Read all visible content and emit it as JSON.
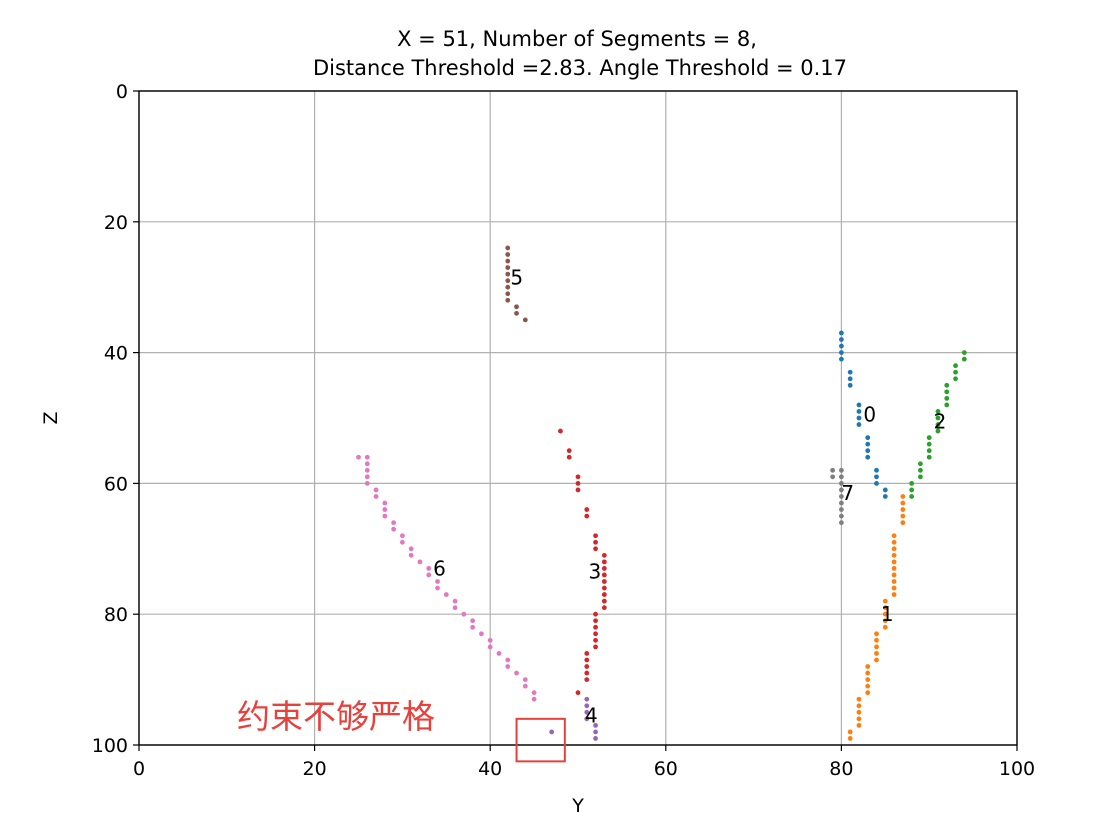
{
  "chart_data": {
    "type": "scatter",
    "title_line1": "X = 51, Number of Segments = 8,",
    "title_line2": "Distance Threshold =2.83. Angle Threshold = 0.17",
    "xlabel": "Y",
    "ylabel": "Z",
    "xlim": [
      0,
      100
    ],
    "ylim": [
      100,
      0
    ],
    "y_axis_inverted": true,
    "grid": true,
    "xticks": [
      0,
      20,
      40,
      60,
      80,
      100
    ],
    "yticks": [
      0,
      20,
      40,
      60,
      80,
      100
    ],
    "xtick_labels": [
      "0",
      "20",
      "40",
      "60",
      "80",
      "100"
    ],
    "ytick_labels": [
      "0",
      "20",
      "40",
      "60",
      "80",
      "100"
    ],
    "series": [
      {
        "label": "0",
        "color": "#1f77b4",
        "label_pos": [
          82.5,
          49.5
        ],
        "points": [
          [
            80,
            37
          ],
          [
            80,
            38
          ],
          [
            80,
            39
          ],
          [
            80,
            40
          ],
          [
            80,
            41
          ],
          [
            81,
            43
          ],
          [
            81,
            44
          ],
          [
            81,
            45
          ],
          [
            82,
            48
          ],
          [
            82,
            49
          ],
          [
            82,
            50
          ],
          [
            82,
            51
          ],
          [
            83,
            53
          ],
          [
            83,
            54
          ],
          [
            83,
            55
          ],
          [
            83,
            56
          ],
          [
            84,
            58
          ],
          [
            84,
            59
          ],
          [
            84,
            60
          ],
          [
            85,
            61
          ],
          [
            85,
            62
          ]
        ]
      },
      {
        "label": "1",
        "color": "#ff7f0e",
        "label_pos": [
          84.5,
          80.0
        ],
        "points": [
          [
            87,
            62
          ],
          [
            87,
            63
          ],
          [
            87,
            64
          ],
          [
            87,
            65
          ],
          [
            87,
            66
          ],
          [
            86,
            68
          ],
          [
            86,
            69
          ],
          [
            86,
            70
          ],
          [
            86,
            71
          ],
          [
            86,
            72
          ],
          [
            86,
            73
          ],
          [
            86,
            74
          ],
          [
            86,
            75
          ],
          [
            86,
            76
          ],
          [
            86,
            77
          ],
          [
            85,
            78
          ],
          [
            85,
            79
          ],
          [
            85,
            80
          ],
          [
            85,
            81
          ],
          [
            85,
            82
          ],
          [
            84,
            83
          ],
          [
            84,
            84
          ],
          [
            84,
            85
          ],
          [
            84,
            86
          ],
          [
            84,
            87
          ],
          [
            83,
            88
          ],
          [
            83,
            89
          ],
          [
            83,
            90
          ],
          [
            83,
            91
          ],
          [
            83,
            92
          ],
          [
            82,
            93
          ],
          [
            82,
            94
          ],
          [
            82,
            95
          ],
          [
            82,
            96
          ],
          [
            82,
            97
          ],
          [
            81,
            98
          ],
          [
            81,
            99
          ]
        ]
      },
      {
        "label": "2",
        "color": "#2ca02c",
        "label_pos": [
          90.5,
          50.5
        ],
        "points": [
          [
            94,
            40
          ],
          [
            94,
            41
          ],
          [
            93,
            42
          ],
          [
            93,
            43
          ],
          [
            93,
            44
          ],
          [
            92,
            45
          ],
          [
            92,
            46
          ],
          [
            92,
            47
          ],
          [
            92,
            48
          ],
          [
            91,
            49
          ],
          [
            91,
            50
          ],
          [
            91,
            51
          ],
          [
            91,
            52
          ],
          [
            90,
            53
          ],
          [
            90,
            54
          ],
          [
            90,
            55
          ],
          [
            90,
            56
          ],
          [
            89,
            57
          ],
          [
            89,
            58
          ],
          [
            89,
            59
          ],
          [
            88,
            60
          ],
          [
            88,
            61
          ],
          [
            88,
            62
          ]
        ]
      },
      {
        "label": "3",
        "color": "#d62728",
        "label_pos": [
          51.2,
          73.5
        ],
        "points": [
          [
            48,
            52
          ],
          [
            49,
            55
          ],
          [
            49,
            56
          ],
          [
            50,
            59
          ],
          [
            50,
            60
          ],
          [
            50,
            61
          ],
          [
            51,
            64
          ],
          [
            51,
            65
          ],
          [
            52,
            68
          ],
          [
            52,
            69
          ],
          [
            52,
            70
          ],
          [
            53,
            71
          ],
          [
            53,
            72
          ],
          [
            53,
            73
          ],
          [
            53,
            74
          ],
          [
            53,
            75
          ],
          [
            53,
            76
          ],
          [
            53,
            77
          ],
          [
            53,
            78
          ],
          [
            53,
            79
          ],
          [
            52,
            80
          ],
          [
            52,
            81
          ],
          [
            52,
            82
          ],
          [
            52,
            83
          ],
          [
            52,
            84
          ],
          [
            52,
            85
          ],
          [
            51,
            86
          ],
          [
            51,
            87
          ],
          [
            51,
            88
          ],
          [
            51,
            89
          ],
          [
            51,
            90
          ],
          [
            50,
            92
          ]
        ]
      },
      {
        "label": "4",
        "color": "#9467bd",
        "label_pos": [
          50.8,
          95.5
        ],
        "points": [
          [
            51,
            93
          ],
          [
            51,
            94
          ],
          [
            51,
            95
          ],
          [
            51,
            96
          ],
          [
            52,
            97
          ],
          [
            52,
            98
          ],
          [
            52,
            99
          ],
          [
            47,
            98
          ]
        ]
      },
      {
        "label": "5",
        "color": "#8c564b",
        "label_pos": [
          42.3,
          28.5
        ],
        "points": [
          [
            42,
            24
          ],
          [
            42,
            25
          ],
          [
            42,
            26
          ],
          [
            42,
            27
          ],
          [
            42,
            28
          ],
          [
            42,
            29
          ],
          [
            42,
            30
          ],
          [
            42,
            31
          ],
          [
            42,
            32
          ],
          [
            43,
            33
          ],
          [
            43,
            34
          ],
          [
            44,
            35
          ]
        ]
      },
      {
        "label": "6",
        "color": "#e377c2",
        "label_pos": [
          33.5,
          73.0
        ],
        "points": [
          [
            25,
            56
          ],
          [
            26,
            56
          ],
          [
            26,
            57
          ],
          [
            26,
            58
          ],
          [
            26,
            59
          ],
          [
            26,
            60
          ],
          [
            27,
            61
          ],
          [
            27,
            62
          ],
          [
            28,
            63
          ],
          [
            28,
            64
          ],
          [
            28,
            65
          ],
          [
            29,
            66
          ],
          [
            29,
            67
          ],
          [
            30,
            68
          ],
          [
            30,
            69
          ],
          [
            31,
            70
          ],
          [
            31,
            71
          ],
          [
            32,
            72
          ],
          [
            33,
            73
          ],
          [
            33,
            74
          ],
          [
            34,
            75
          ],
          [
            34,
            76
          ],
          [
            35,
            77
          ],
          [
            36,
            78
          ],
          [
            36,
            79
          ],
          [
            37,
            80
          ],
          [
            38,
            81
          ],
          [
            38,
            82
          ],
          [
            39,
            83
          ],
          [
            40,
            84
          ],
          [
            40,
            85
          ],
          [
            41,
            86
          ],
          [
            42,
            87
          ],
          [
            42,
            88
          ],
          [
            43,
            89
          ],
          [
            44,
            90
          ],
          [
            44,
            91
          ],
          [
            45,
            92
          ],
          [
            45,
            93
          ]
        ]
      },
      {
        "label": "7",
        "color": "#7f7f7f",
        "label_pos": [
          80.0,
          61.5
        ],
        "points": [
          [
            79,
            58
          ],
          [
            79,
            59
          ],
          [
            80,
            58
          ],
          [
            80,
            59
          ],
          [
            80,
            60
          ],
          [
            80,
            61
          ],
          [
            80,
            62
          ],
          [
            80,
            63
          ],
          [
            80,
            64
          ],
          [
            80,
            65
          ],
          [
            80,
            66
          ]
        ]
      }
    ],
    "annotation": {
      "text": "约束不够严格",
      "color": "#e8413c",
      "box_xrange": [
        43.0,
        48.5
      ],
      "box_yrange": [
        96.0,
        102.5
      ]
    }
  }
}
